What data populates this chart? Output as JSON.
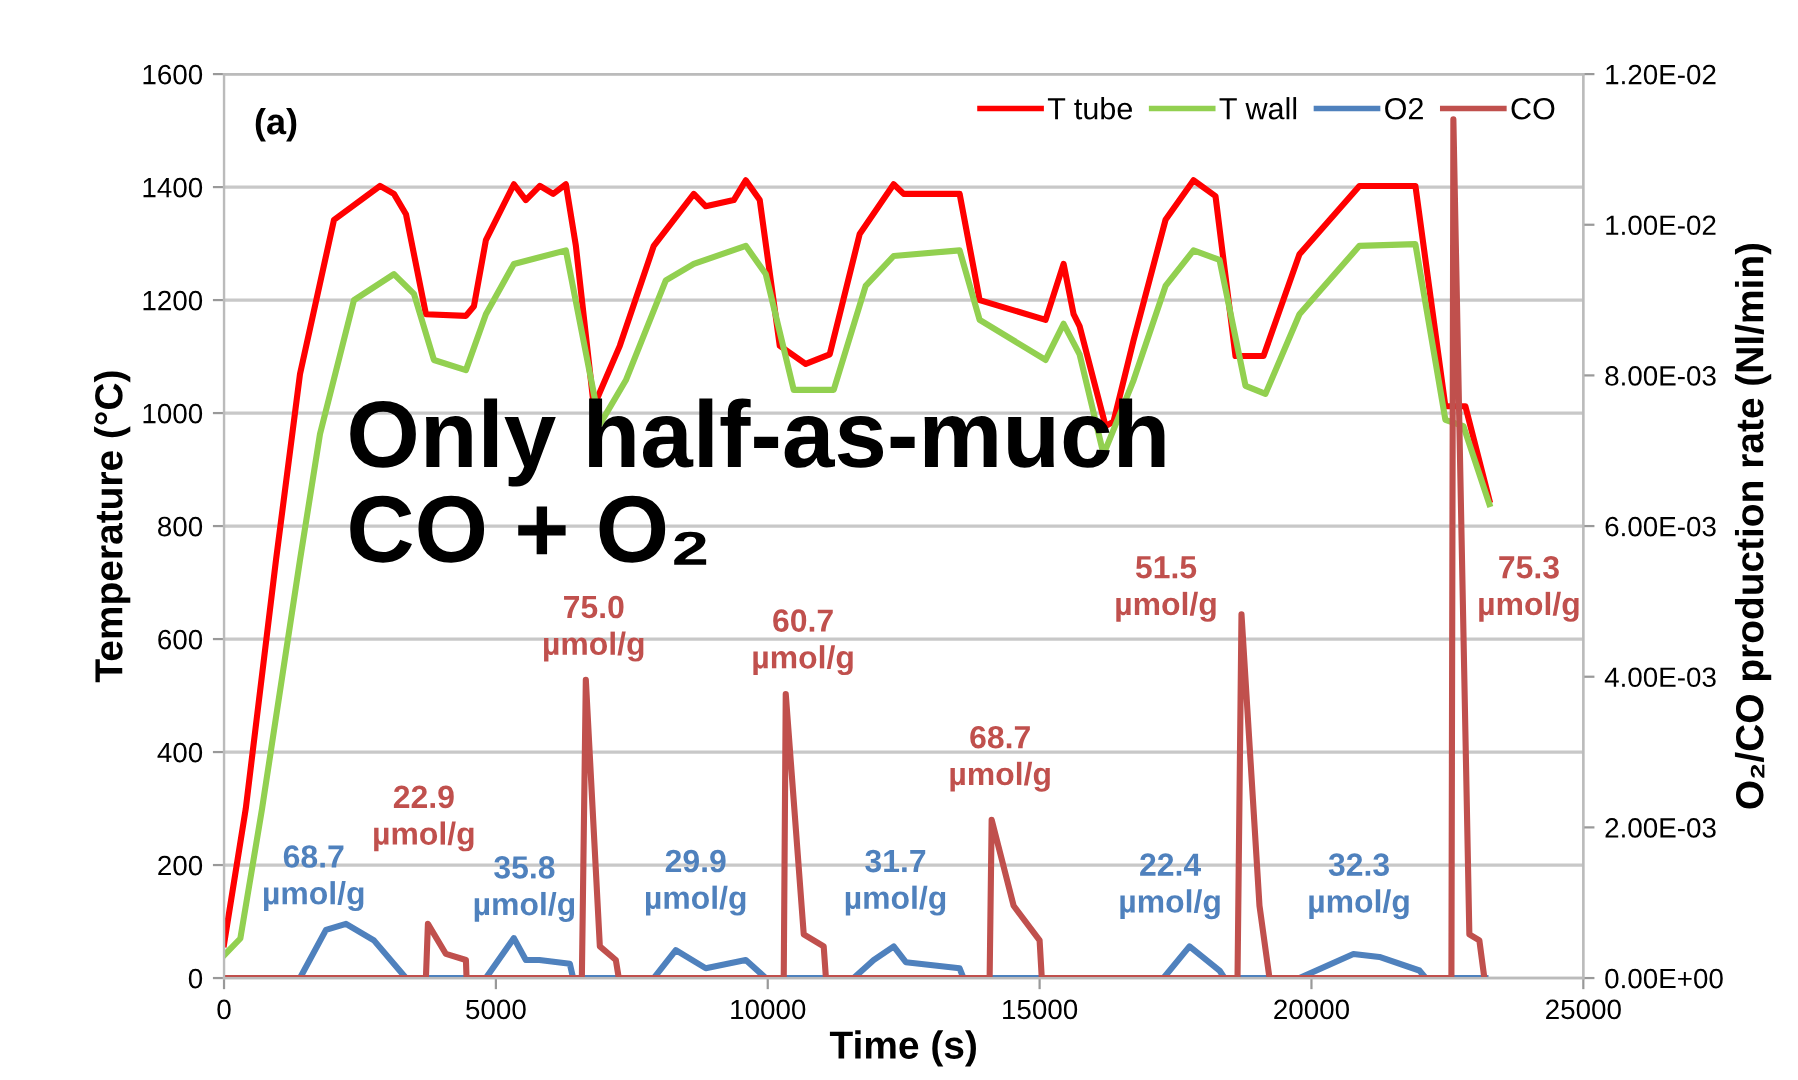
{
  "chart_data": {
    "type": "line",
    "xlabel": "Time (s)",
    "ylabel": "Temperature (°C)",
    "y2label": "O₂/CO production rate (Nl/min)",
    "xlim": [
      0,
      25000
    ],
    "xticks": [
      0,
      5000,
      10000,
      15000,
      20000,
      25000
    ],
    "ylim": [
      0,
      1600
    ],
    "yticks": [
      0,
      200,
      400,
      600,
      800,
      1000,
      1200,
      1400,
      1600
    ],
    "y2lim": [
      0,
      0.012
    ],
    "y2ticks": [
      {
        "value": 0,
        "label": "0.00E+00"
      },
      {
        "value": 0.002,
        "label": "2.00E-03"
      },
      {
        "value": 0.004,
        "label": "4.00E-03"
      },
      {
        "value": 0.006,
        "label": "6.00E-03"
      },
      {
        "value": 0.008,
        "label": "8.00E-03"
      },
      {
        "value": 0.01,
        "label": "1.00E-02"
      },
      {
        "value": 0.012,
        "label": "1.20E-02"
      }
    ],
    "grid": "y",
    "legend": "top right",
    "marker": "none",
    "line_style": "solid",
    "series": [
      {
        "name": "T tube",
        "color": "#ff0000",
        "x": [
          0,
          400,
          956,
          1397,
          2022,
          2868,
          3125,
          3346,
          3713,
          4449,
          4596,
          4816,
          5331,
          5551,
          5809,
          6054,
          6287,
          6471,
          6801,
          7279,
          7904,
          8640,
          8860,
          9375,
          9596,
          9853,
          10221,
          10699,
          11140,
          11324,
          11691,
          12316,
          12500,
          13529,
          13897,
          15110,
          15441,
          15625,
          15735,
          16213,
          16360,
          16728,
          17316,
          17831,
          18235,
          18603,
          19118,
          19779,
          20882,
          21912,
          22463,
          22831,
          23272
        ],
        "values": [
          60,
          300,
          740,
          1069,
          1342,
          1402,
          1388,
          1352,
          1175,
          1172,
          1189,
          1306,
          1405,
          1377,
          1402,
          1388,
          1405,
          1296,
          1012,
          1119,
          1296,
          1388,
          1366,
          1377,
          1412,
          1377,
          1119,
          1087,
          1104,
          1175,
          1317,
          1405,
          1388,
          1388,
          1200,
          1165,
          1264,
          1175,
          1154,
          977,
          985,
          1129,
          1342,
          1412,
          1384,
          1101,
          1101,
          1281,
          1402,
          1402,
          1012,
          1012,
          846
        ]
      },
      {
        "name": "T wall",
        "color": "#92d050",
        "x": [
          0,
          300,
          700,
          1397,
          1765,
          2390,
          3125,
          3493,
          3860,
          4449,
          4816,
          5331,
          6287,
          6912,
          7390,
          8125,
          8640,
          9596,
          9963,
          10478,
          11213,
          11801,
          12316,
          13529,
          13897,
          15110,
          15441,
          15735,
          16176,
          16728,
          17316,
          17831,
          18309,
          18787,
          19154,
          19779,
          20882,
          21912,
          22463,
          22794,
          23272
        ],
        "values": [
          40,
          70,
          300,
          740,
          963,
          1200,
          1246,
          1211,
          1094,
          1076,
          1175,
          1264,
          1288,
          980,
          1058,
          1235,
          1264,
          1296,
          1246,
          1041,
          1041,
          1225,
          1278,
          1288,
          1165,
          1094,
          1158,
          1104,
          927,
          1058,
          1225,
          1288,
          1271,
          1048,
          1034,
          1175,
          1296,
          1299,
          988,
          977,
          839
        ]
      },
      {
        "name": "O2",
        "color": "#4f81bd",
        "axis": "y2",
        "x": [
          0,
          1397,
          1875,
          2243,
          2757,
          3346,
          4816,
          5331,
          5551,
          5800,
          6360,
          6420,
          7904,
          8309,
          8860,
          9596,
          9963,
          11581,
          11949,
          12316,
          12540,
          13529,
          13600,
          17279,
          17757,
          18309,
          18400,
          19779,
          20772,
          21250,
          21985,
          22100,
          23200
        ],
        "values": [
          0,
          0,
          0.00064,
          0.00072,
          0.0005,
          0,
          0,
          0.00053,
          0.00024,
          0.00024,
          0.00019,
          0,
          0,
          0.00037,
          0.00013,
          0.00024,
          0,
          0,
          0.00024,
          0.00042,
          0.00021,
          0.00013,
          0,
          0,
          0.00042,
          0.0001,
          0,
          0,
          0.00032,
          0.00028,
          0.0001,
          0,
          0
        ]
      },
      {
        "name": "CO",
        "color": "#c0504d",
        "axis": "y2",
        "x": [
          0,
          3713,
          3750,
          4081,
          4449,
          4460,
          6581,
          6654,
          6912,
          7206,
          7260,
          10294,
          10331,
          10662,
          11029,
          11070,
          14081,
          14118,
          14522,
          15000,
          15040,
          18640,
          18713,
          19044,
          19228,
          22574,
          22610,
          22904,
          23088,
          23180
        ],
        "values": [
          0,
          0,
          0.00072,
          0.00032,
          0.00024,
          0,
          0,
          0.00396,
          0.00042,
          0.00024,
          0,
          0,
          0.00377,
          0.00058,
          0.00042,
          0,
          0,
          0.0021,
          0.00096,
          0.0005,
          0,
          0,
          0.00483,
          0.00096,
          0,
          0,
          0.0114,
          0.00058,
          0.0005,
          0
        ]
      }
    ],
    "annotations": [
      "(a)",
      "68.7\nµmol/g",
      "22.9\nµmol/g",
      "35.8\nµmol/g",
      "75.0\nµmol/g",
      "29.9\nµmol/g",
      "60.7\nµmol/g",
      "31.7\nµmol/g",
      "68.7\nµmol/g",
      "22.4\nµmol/g",
      "51.5\nµmol/g",
      "32.3\nµmol/g",
      "75.3\nµmol/g",
      "Only half-as-much\nCO + O₂"
    ]
  }
}
